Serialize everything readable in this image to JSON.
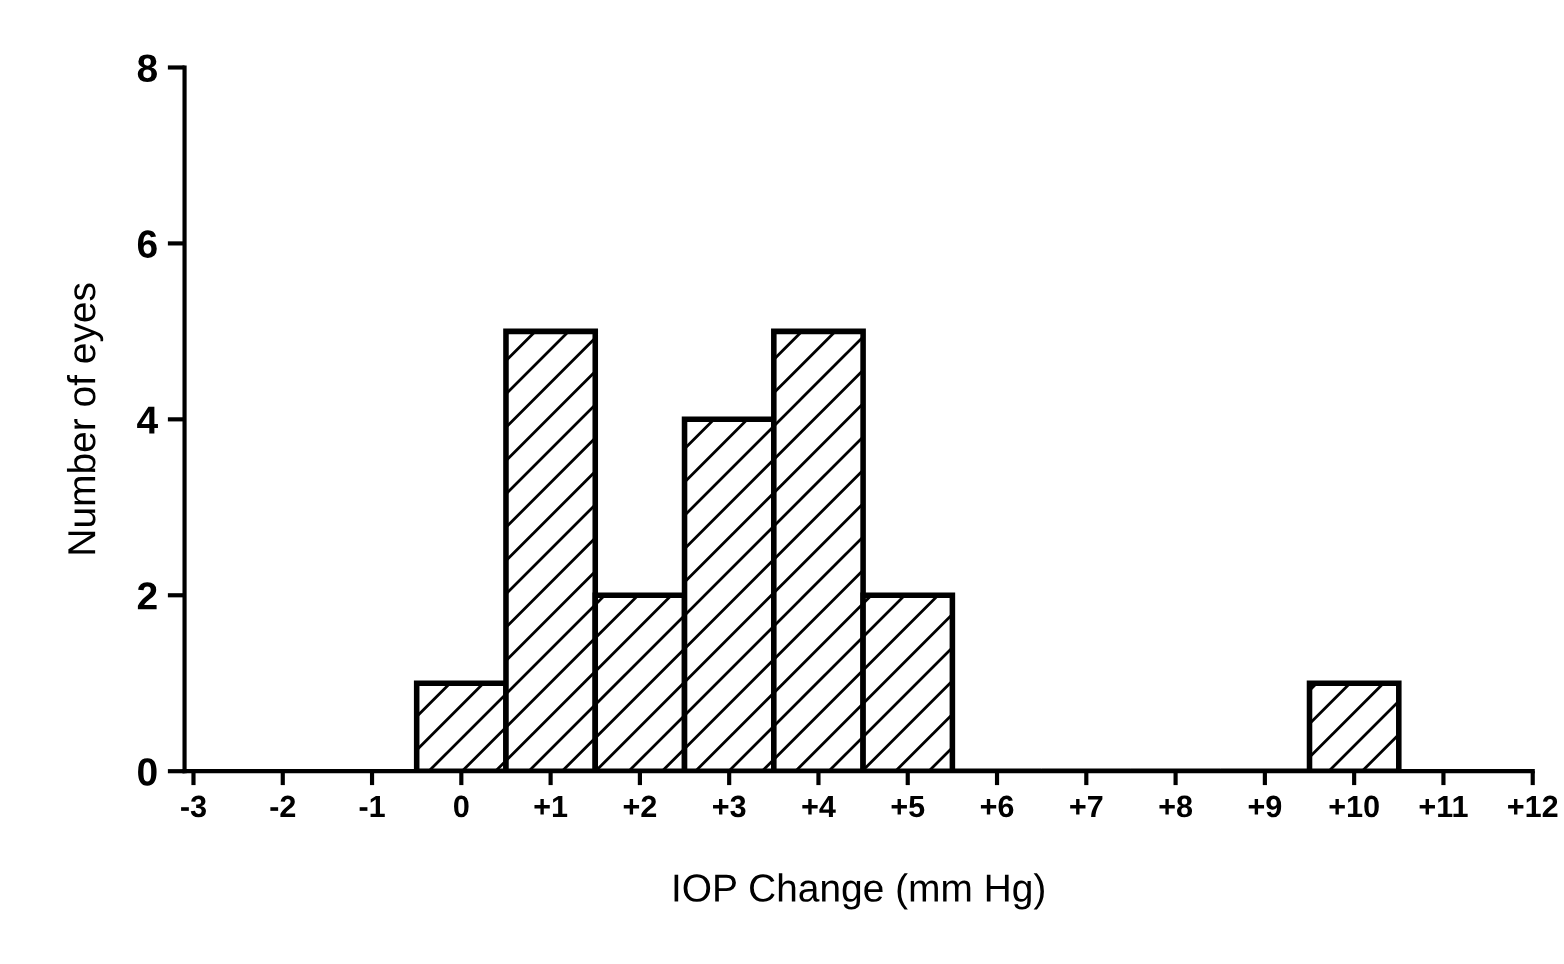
{
  "chart_data": {
    "type": "histogram",
    "xlabel": "IOP Change (mm Hg)",
    "ylabel": "Number of eyes",
    "bins": [
      -0.5,
      0.5,
      1.5,
      2.5,
      3.5,
      4.5,
      5.5,
      6.5,
      7.5,
      8.5,
      9.5,
      10.5
    ],
    "values": [
      1,
      5,
      2,
      4,
      5,
      2,
      0,
      0,
      0,
      0,
      1
    ],
    "color": "#000000",
    "xlim": [
      -3.1,
      12
    ],
    "xticks": [
      -3,
      -2,
      -1,
      0,
      {
        "value": 1,
        "label": "+1"
      },
      {
        "value": 2,
        "label": "+2"
      },
      {
        "value": 3,
        "label": "+3"
      },
      {
        "value": 4,
        "label": "+4"
      },
      {
        "value": 5,
        "label": "+5"
      },
      {
        "value": 6,
        "label": "+6"
      },
      {
        "value": 7,
        "label": "+7"
      },
      {
        "value": 8,
        "label": "+8"
      },
      {
        "value": 9,
        "label": "+9"
      },
      {
        "value": 10,
        "label": "+10"
      },
      {
        "value": 11,
        "label": "+11"
      },
      {
        "value": 12,
        "label": "+12"
      }
    ],
    "ylim": [
      0,
      8
    ],
    "yticks": [
      0,
      2,
      4,
      6,
      8
    ],
    "grid": false
  }
}
